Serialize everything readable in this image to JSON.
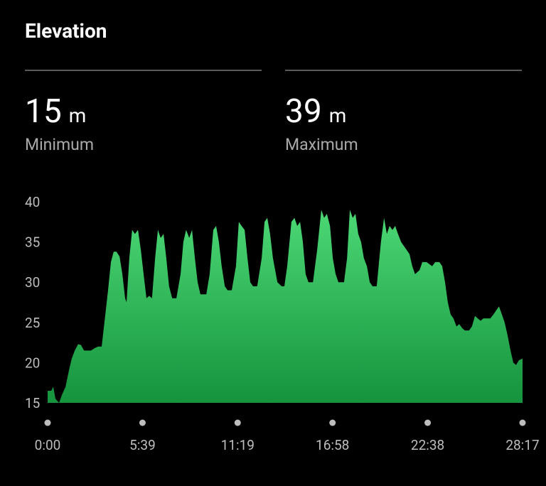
{
  "header": {
    "title": "Elevation"
  },
  "stats": [
    {
      "value": "15",
      "unit": "m",
      "label": "Minimum"
    },
    {
      "value": "39",
      "unit": "m",
      "label": "Maximum"
    }
  ],
  "chart_data": {
    "type": "area",
    "gradient": [
      "#4cd875",
      "#15933d"
    ],
    "xlim": [
      0,
      1697
    ],
    "ylim": [
      15,
      40
    ],
    "yticks": [
      15,
      20,
      25,
      30,
      35,
      40
    ],
    "xticks": [
      {
        "value": 0,
        "label": "0:00"
      },
      {
        "value": 339,
        "label": "5:39"
      },
      {
        "value": 679,
        "label": "11:19"
      },
      {
        "value": 1018,
        "label": "16:58"
      },
      {
        "value": 1358,
        "label": "22:38"
      },
      {
        "value": 1697,
        "label": "28:17"
      }
    ],
    "x": [
      0,
      13,
      20,
      28,
      41,
      51,
      64,
      76,
      86,
      97,
      109,
      119,
      130,
      155,
      168,
      180,
      193,
      203,
      216,
      226,
      236,
      246,
      257,
      267,
      277,
      282,
      292,
      302,
      312,
      323,
      333,
      343,
      353,
      363,
      373,
      384,
      394,
      404,
      414,
      424,
      434,
      445,
      460,
      475,
      485,
      495,
      506,
      516,
      526,
      536,
      546,
      567,
      579,
      592,
      602,
      612,
      622,
      633,
      643,
      658,
      673,
      683,
      693,
      704,
      714,
      724,
      734,
      749,
      765,
      775,
      785,
      795,
      805,
      821,
      836,
      846,
      856,
      871,
      882,
      892,
      902,
      912,
      922,
      932,
      948,
      963,
      978,
      988,
      998,
      1009,
      1019,
      1029,
      1039,
      1059,
      1070,
      1080,
      1090,
      1100,
      1110,
      1120,
      1130,
      1141,
      1151,
      1161,
      1176,
      1191,
      1202,
      1212,
      1222,
      1232,
      1242,
      1252,
      1263,
      1273,
      1283,
      1293,
      1303,
      1313,
      1329,
      1339,
      1354,
      1374,
      1385,
      1400,
      1410,
      1420,
      1430,
      1440,
      1450,
      1461,
      1471,
      1481,
      1491,
      1506,
      1516,
      1527,
      1537,
      1547,
      1557,
      1582,
      1593,
      1603,
      1613,
      1623,
      1633,
      1643,
      1654,
      1664,
      1674,
      1684,
      1697
    ],
    "values": [
      16.5,
      16.5,
      17,
      15.5,
      15,
      16,
      17,
      19,
      20.5,
      21.5,
      22.3,
      22.2,
      21.5,
      21.5,
      21.8,
      22,
      22,
      25,
      29,
      32.5,
      33.8,
      33.8,
      33.2,
      31,
      28,
      27.5,
      33,
      36.5,
      36,
      36.5,
      34,
      31,
      28,
      28.3,
      28,
      33,
      36.5,
      35.5,
      36,
      33,
      29.5,
      28,
      28,
      31,
      35,
      36.5,
      35.5,
      36.5,
      33,
      30,
      28.5,
      28.5,
      31,
      36.5,
      37,
      35,
      32,
      29.5,
      29,
      29,
      32,
      37.5,
      37,
      36.5,
      33,
      30,
      29.5,
      29.5,
      33,
      37.5,
      38,
      36,
      33,
      30,
      29.5,
      29.5,
      32,
      37.5,
      38,
      37,
      37.5,
      35,
      31,
      30,
      30,
      34,
      39,
      38,
      38.5,
      37,
      33,
      31,
      30,
      30,
      33,
      39,
      38,
      38.5,
      36,
      35,
      33,
      32,
      30,
      29.5,
      29.5,
      35,
      38,
      36,
      37,
      36.5,
      37,
      36,
      35,
      34.5,
      34,
      33.5,
      32,
      31,
      31.5,
      32.5,
      32.5,
      32,
      32.5,
      32.5,
      32,
      30,
      27.5,
      26,
      25.5,
      24.5,
      24.8,
      24.3,
      24,
      24,
      24.5,
      25.8,
      25.5,
      25.2,
      25.5,
      25.5,
      26,
      26.5,
      27,
      26,
      25,
      23.5,
      21.5,
      20,
      19.7,
      20.3,
      20.5
    ]
  }
}
